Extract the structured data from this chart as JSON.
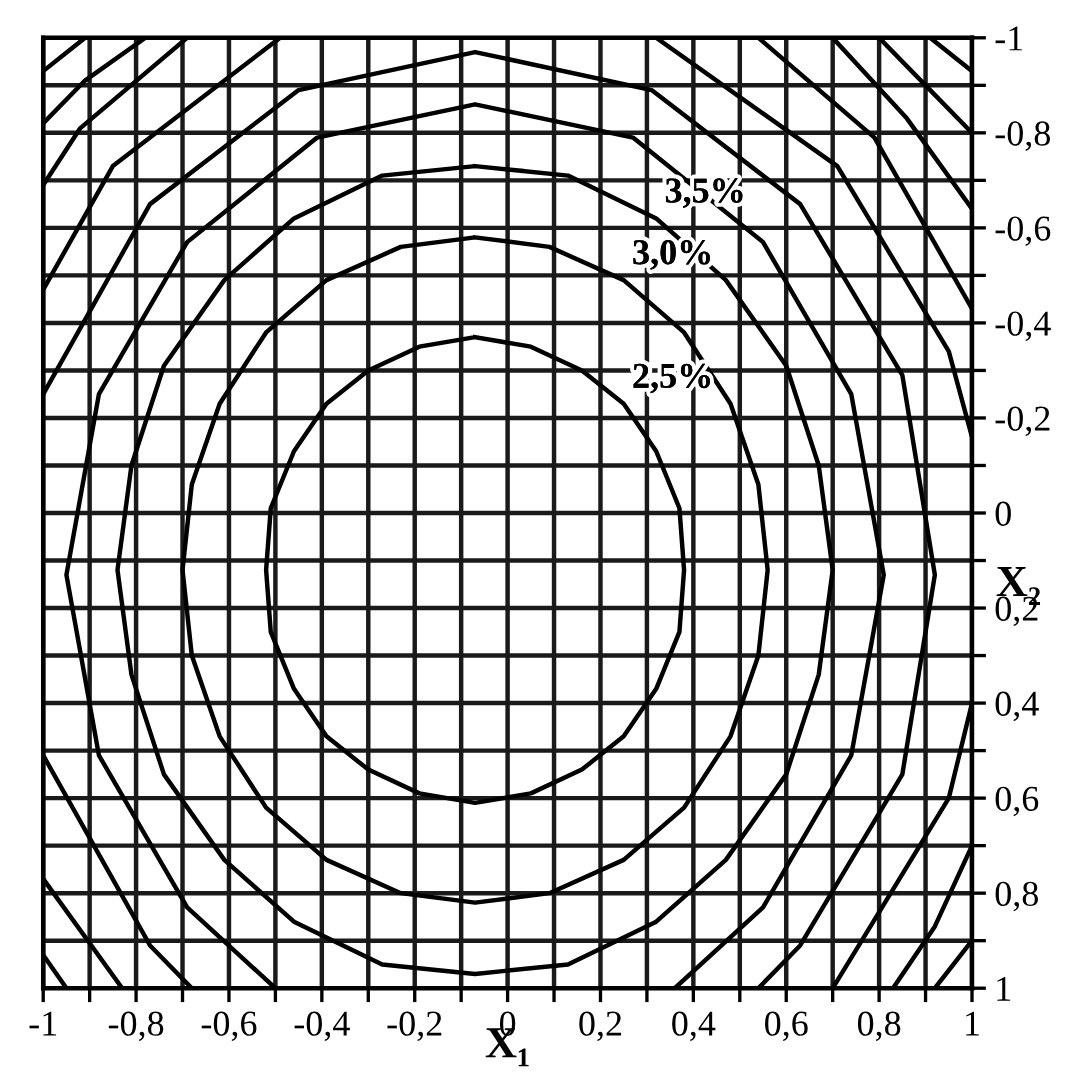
{
  "chart_data": {
    "type": "line",
    "xlabel": "X₁",
    "ylabel": "X₂",
    "xlim": [
      -1,
      1
    ],
    "ylim": [
      1,
      -1
    ],
    "xticks": [
      {
        "value": -1,
        "label": "-1"
      },
      {
        "value": -0.9,
        "label": null
      },
      {
        "value": -0.8,
        "label": "-0,8"
      },
      {
        "value": -0.7,
        "label": null
      },
      {
        "value": -0.6,
        "label": "-0,6"
      },
      {
        "value": -0.5,
        "label": null
      },
      {
        "value": -0.4,
        "label": "-0,4"
      },
      {
        "value": -0.3,
        "label": null
      },
      {
        "value": -0.2,
        "label": "-0,2"
      },
      {
        "value": -0.1,
        "label": null
      },
      {
        "value": 0,
        "label": "0"
      },
      {
        "value": 0.1,
        "label": null
      },
      {
        "value": 0.2,
        "label": "0,2"
      },
      {
        "value": 0.3,
        "label": null
      },
      {
        "value": 0.4,
        "label": "0,4"
      },
      {
        "value": 0.5,
        "label": null
      },
      {
        "value": 0.6,
        "label": "0,6"
      },
      {
        "value": 0.7,
        "label": null
      },
      {
        "value": 0.8,
        "label": "0,8"
      },
      {
        "value": 0.9,
        "label": null
      },
      {
        "value": 1,
        "label": "1"
      }
    ],
    "yticks": [
      {
        "value": -1,
        "label": "-1"
      },
      {
        "value": -0.9,
        "label": null
      },
      {
        "value": -0.8,
        "label": "-0,8"
      },
      {
        "value": -0.7,
        "label": null
      },
      {
        "value": -0.6,
        "label": "-0,6"
      },
      {
        "value": -0.5,
        "label": null
      },
      {
        "value": -0.4,
        "label": "-0,4"
      },
      {
        "value": -0.3,
        "label": null
      },
      {
        "value": -0.2,
        "label": "-0,2"
      },
      {
        "value": -0.1,
        "label": null
      },
      {
        "value": 0,
        "label": "0"
      },
      {
        "value": 0.1,
        "label": null
      },
      {
        "value": 0.2,
        "label": "0,2"
      },
      {
        "value": 0.3,
        "label": null
      },
      {
        "value": 0.4,
        "label": "0,4"
      },
      {
        "value": 0.5,
        "label": null
      },
      {
        "value": 0.6,
        "label": "0,6"
      },
      {
        "value": 0.7,
        "label": null
      },
      {
        "value": 0.8,
        "label": "0,8"
      },
      {
        "value": 0.9,
        "label": null
      },
      {
        "value": 1,
        "label": "1"
      }
    ],
    "grid": true,
    "legend": false,
    "marker": "none",
    "line_style": "solid",
    "series": [
      {
        "name": "2,5%",
        "color": "#000000",
        "x": [
          -0.07,
          0.05,
          0.16,
          0.25,
          0.32,
          0.37,
          0.38,
          0.37,
          0.32,
          0.25,
          0.16,
          0.05,
          -0.07,
          -0.19,
          -0.3,
          -0.39,
          -0.46,
          -0.51,
          -0.52,
          -0.51,
          -0.46,
          -0.39,
          -0.3,
          -0.19,
          -0.07,
          -0.01
        ],
        "values": [
          -0.37,
          -0.35,
          -0.3,
          -0.23,
          -0.13,
          -0.01,
          0.12,
          0.25,
          0.37,
          0.47,
          0.54,
          0.59,
          0.61,
          0.59,
          0.54,
          0.47,
          0.37,
          0.25,
          0.12,
          -0.01,
          -0.13,
          -0.23,
          -0.3,
          -0.35,
          -0.37,
          -0.36
        ]
      },
      {
        "name": "3,0%",
        "color": "#000000",
        "x": [
          -0.07,
          0.09,
          0.25,
          0.38,
          0.48,
          0.54,
          0.56,
          0.54,
          0.48,
          0.38,
          0.25,
          0.09,
          -0.07,
          -0.23,
          -0.39,
          -0.52,
          -0.62,
          -0.68,
          -0.7,
          -0.68,
          -0.62,
          -0.52,
          -0.39,
          -0.23,
          -0.07,
          0.01
        ],
        "values": [
          -0.58,
          -0.56,
          -0.49,
          -0.38,
          -0.23,
          -0.06,
          0.12,
          0.3,
          0.47,
          0.62,
          0.73,
          0.8,
          0.82,
          0.8,
          0.73,
          0.62,
          0.47,
          0.3,
          0.12,
          -0.06,
          -0.23,
          -0.38,
          -0.49,
          -0.56,
          -0.58,
          -0.57
        ]
      },
      {
        "name": "3,5%",
        "color": "#000000",
        "x": [
          -0.07,
          0.13,
          0.32,
          0.47,
          0.6,
          0.67,
          0.7,
          0.67,
          0.6,
          0.47,
          0.32,
          0.13,
          -0.07,
          -0.27,
          -0.46,
          -0.61,
          -0.74,
          -0.81,
          -0.84,
          -0.81,
          -0.74,
          -0.61,
          -0.46,
          -0.27,
          -0.07,
          0.03
        ],
        "values": [
          -0.73,
          -0.71,
          -0.62,
          -0.49,
          -0.31,
          -0.1,
          0.12,
          0.34,
          0.55,
          0.73,
          0.86,
          0.95,
          0.97,
          0.95,
          0.86,
          0.73,
          0.55,
          0.34,
          0.12,
          -0.1,
          -0.31,
          -0.49,
          -0.62,
          -0.71,
          -0.73,
          -0.72
        ]
      },
      {
        "color": "#000000",
        "x": [
          0.36,
          0.55,
          0.74,
          0.81,
          0.74,
          0.55,
          0.27,
          -0.07,
          -0.41,
          -0.69,
          -0.88,
          -0.95,
          -0.88,
          -0.69,
          -0.5
        ],
        "values": [
          1,
          0.83,
          0.51,
          0.13,
          -0.25,
          -0.57,
          -0.79,
          -0.86,
          -0.79,
          -0.57,
          -0.25,
          0.13,
          0.51,
          0.83,
          1
        ]
      },
      {
        "color": "#000000",
        "x": [
          0.54,
          0.63,
          0.85,
          0.92,
          0.85,
          0.63,
          0.31,
          -0.07,
          -0.45,
          -0.77,
          -1
        ],
        "values": [
          1,
          0.91,
          0.55,
          0.13,
          -0.29,
          -0.65,
          -0.89,
          -0.97,
          -0.89,
          -0.65,
          -0.25
        ]
      },
      {
        "color": "#000000",
        "x": [
          -1,
          -0.77,
          -0.68
        ],
        "values": [
          0.51,
          0.91,
          1
        ]
      },
      {
        "color": "#000000",
        "x": [
          -1,
          -0.85,
          -0.49
        ],
        "values": [
          -0.47,
          -0.73,
          -1
        ]
      },
      {
        "color": "#000000",
        "x": [
          0.32,
          0.71,
          0.95,
          1
        ],
        "values": [
          -1,
          -0.73,
          -0.34,
          -0.16
        ]
      },
      {
        "color": "#000000",
        "x": [
          1,
          0.95,
          0.7
        ],
        "values": [
          0.4,
          0.6,
          1
        ]
      },
      {
        "color": "#000000",
        "x": [
          -1,
          -0.83
        ],
        "values": [
          0.77,
          1
        ]
      },
      {
        "color": "#000000",
        "x": [
          -1,
          -0.92,
          -0.69
        ],
        "values": [
          -0.69,
          -0.81,
          -1
        ]
      },
      {
        "color": "#000000",
        "x": [
          0.54,
          0.79,
          1
        ],
        "values": [
          -1,
          -0.79,
          -0.43
        ]
      },
      {
        "color": "#000000",
        "x": [
          1,
          0.92,
          0.83
        ],
        "values": [
          0.7,
          0.87,
          1
        ]
      },
      {
        "color": "#000000",
        "x": [
          -1,
          -0.95
        ],
        "values": [
          0.93,
          1
        ]
      },
      {
        "color": "#000000",
        "x": [
          -1,
          -0.91,
          -0.78
        ],
        "values": [
          -0.82,
          -0.91,
          -1
        ]
      },
      {
        "color": "#000000",
        "x": [
          0.7,
          0.86,
          1
        ],
        "values": [
          -1,
          -0.83,
          -0.64
        ]
      },
      {
        "color": "#000000",
        "x": [
          1,
          0.92
        ],
        "values": [
          0.9,
          1
        ]
      },
      {
        "color": "#000000",
        "x": [
          -1,
          -0.91
        ],
        "values": [
          -0.93,
          -1
        ]
      },
      {
        "color": "#000000",
        "x": [
          0.8,
          0.91,
          1
        ],
        "values": [
          -1,
          -0.89,
          -0.8
        ]
      },
      {
        "color": "#000000",
        "x": [
          0.91,
          1
        ],
        "values": [
          -1,
          -0.93
        ]
      }
    ]
  }
}
